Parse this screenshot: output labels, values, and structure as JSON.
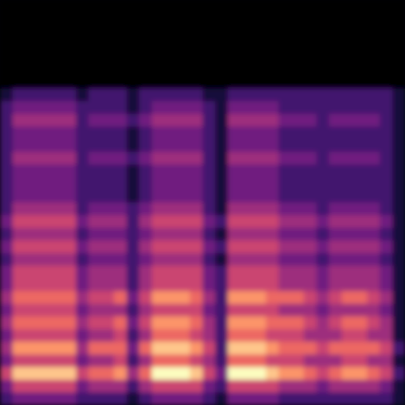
{
  "chart_data": {
    "type": "heatmap",
    "color": "magma",
    "tick_labels": false,
    "zlim": [
      0,
      9
    ],
    "cells": [
      [
        0,
        0,
        0,
        0,
        0,
        0,
        0,
        0,
        0,
        0,
        0,
        0,
        0,
        0,
        0,
        0,
        0,
        0,
        0,
        0,
        0,
        0,
        0,
        0,
        0,
        0,
        0,
        0,
        0,
        0,
        0,
        0
      ],
      [
        0,
        0,
        0,
        0,
        0,
        0,
        0,
        0,
        0,
        0,
        0,
        0,
        0,
        0,
        0,
        0,
        0,
        0,
        0,
        0,
        0,
        0,
        0,
        0,
        0,
        0,
        0,
        0,
        0,
        0,
        0,
        0
      ],
      [
        0,
        0,
        0,
        0,
        0,
        0,
        0,
        0,
        0,
        0,
        0,
        0,
        0,
        0,
        0,
        0,
        0,
        0,
        0,
        0,
        0,
        0,
        0,
        0,
        0,
        0,
        0,
        0,
        0,
        0,
        0,
        0
      ],
      [
        0,
        0,
        0,
        0,
        0,
        0,
        0,
        0,
        0,
        0,
        0,
        0,
        0,
        0,
        0,
        0,
        0,
        0,
        0,
        0,
        0,
        0,
        0,
        0,
        0,
        0,
        0,
        0,
        0,
        0,
        0,
        0
      ],
      [
        0,
        0,
        0,
        0,
        0,
        0,
        0,
        0,
        0,
        0,
        0,
        0,
        0,
        0,
        0,
        0,
        0,
        0,
        0,
        0,
        0,
        0,
        0,
        0,
        0,
        0,
        0,
        0,
        0,
        0,
        0,
        0
      ],
      [
        0,
        0,
        0,
        0,
        0,
        0,
        0,
        0,
        0,
        0,
        0,
        0,
        0,
        0,
        0,
        0,
        0,
        0,
        0,
        0,
        0,
        0,
        0,
        0,
        0,
        0,
        0,
        0,
        0,
        0,
        0,
        0
      ],
      [
        0,
        0,
        0,
        0,
        0,
        0,
        0,
        0,
        0,
        0,
        0,
        0,
        0,
        0,
        0,
        0,
        0,
        0,
        0,
        0,
        0,
        0,
        0,
        0,
        0,
        0,
        0,
        0,
        0,
        0,
        0,
        0
      ],
      [
        1,
        2,
        2,
        2,
        2,
        2,
        1,
        2,
        2,
        2,
        1,
        2,
        2,
        2,
        2,
        2,
        1,
        1,
        2,
        2,
        2,
        2,
        2,
        2,
        2,
        2,
        2,
        2,
        2,
        2,
        2,
        1
      ],
      [
        2,
        3,
        3,
        3,
        3,
        3,
        2,
        2,
        2,
        2,
        1,
        2,
        3,
        3,
        3,
        3,
        2,
        1,
        3,
        3,
        3,
        3,
        2,
        2,
        2,
        2,
        2,
        2,
        2,
        2,
        2,
        1
      ],
      [
        2,
        4,
        4,
        4,
        4,
        4,
        2,
        3,
        3,
        3,
        2,
        3,
        4,
        4,
        4,
        4,
        2,
        1,
        4,
        4,
        4,
        4,
        3,
        3,
        3,
        2,
        3,
        3,
        3,
        3,
        2,
        1
      ],
      [
        2,
        3,
        3,
        3,
        3,
        3,
        2,
        2,
        2,
        2,
        1,
        2,
        3,
        3,
        3,
        3,
        2,
        1,
        3,
        3,
        3,
        3,
        2,
        2,
        2,
        2,
        2,
        2,
        2,
        2,
        2,
        1
      ],
      [
        2,
        3,
        3,
        3,
        3,
        3,
        2,
        2,
        2,
        2,
        1,
        2,
        3,
        3,
        3,
        3,
        2,
        1,
        3,
        3,
        3,
        3,
        2,
        2,
        2,
        2,
        2,
        2,
        2,
        2,
        2,
        1
      ],
      [
        2,
        4,
        4,
        4,
        4,
        4,
        2,
        3,
        3,
        3,
        2,
        3,
        4,
        4,
        4,
        4,
        2,
        1,
        4,
        4,
        4,
        4,
        3,
        3,
        3,
        2,
        3,
        3,
        3,
        3,
        2,
        1
      ],
      [
        2,
        3,
        3,
        3,
        3,
        3,
        2,
        2,
        2,
        2,
        1,
        2,
        3,
        3,
        3,
        3,
        2,
        1,
        3,
        3,
        3,
        3,
        2,
        2,
        2,
        2,
        2,
        2,
        2,
        2,
        2,
        1
      ],
      [
        2,
        3,
        3,
        3,
        3,
        3,
        2,
        2,
        2,
        2,
        1,
        2,
        3,
        3,
        3,
        3,
        2,
        1,
        3,
        3,
        3,
        3,
        2,
        2,
        2,
        2,
        2,
        2,
        2,
        2,
        2,
        1
      ],
      [
        2,
        3,
        3,
        3,
        3,
        3,
        2,
        2,
        2,
        2,
        1,
        2,
        3,
        3,
        3,
        3,
        2,
        1,
        3,
        3,
        3,
        3,
        2,
        2,
        2,
        2,
        2,
        2,
        2,
        2,
        2,
        1
      ],
      [
        2,
        4,
        4,
        4,
        4,
        4,
        2,
        3,
        3,
        3,
        2,
        3,
        4,
        4,
        4,
        4,
        2,
        1,
        4,
        4,
        4,
        4,
        3,
        3,
        3,
        2,
        3,
        3,
        3,
        3,
        2,
        1
      ],
      [
        3,
        5,
        5,
        5,
        5,
        5,
        3,
        4,
        4,
        4,
        2,
        4,
        5,
        5,
        5,
        5,
        3,
        2,
        5,
        5,
        5,
        5,
        4,
        4,
        4,
        3,
        4,
        4,
        4,
        4,
        3,
        1
      ],
      [
        2,
        4,
        4,
        4,
        4,
        4,
        2,
        3,
        3,
        3,
        2,
        3,
        4,
        4,
        4,
        4,
        2,
        1,
        4,
        4,
        4,
        4,
        3,
        3,
        3,
        2,
        3,
        3,
        3,
        3,
        2,
        1
      ],
      [
        3,
        5,
        5,
        5,
        5,
        5,
        3,
        4,
        4,
        4,
        2,
        4,
        5,
        5,
        5,
        5,
        3,
        2,
        5,
        5,
        5,
        5,
        4,
        4,
        4,
        3,
        4,
        4,
        4,
        4,
        3,
        1
      ],
      [
        2,
        4,
        4,
        4,
        4,
        4,
        2,
        3,
        3,
        3,
        2,
        3,
        4,
        4,
        4,
        4,
        2,
        1,
        4,
        4,
        4,
        4,
        3,
        3,
        3,
        2,
        3,
        3,
        3,
        3,
        2,
        1
      ],
      [
        3,
        5,
        5,
        5,
        5,
        5,
        3,
        4,
        4,
        4,
        2,
        4,
        5,
        5,
        5,
        5,
        3,
        2,
        5,
        5,
        5,
        5,
        4,
        4,
        4,
        3,
        4,
        4,
        4,
        4,
        3,
        1
      ],
      [
        3,
        5,
        5,
        5,
        5,
        5,
        3,
        4,
        4,
        4,
        2,
        4,
        5,
        5,
        5,
        5,
        3,
        2,
        5,
        5,
        5,
        5,
        4,
        4,
        4,
        3,
        4,
        4,
        4,
        4,
        3,
        1
      ],
      [
        4,
        6,
        6,
        6,
        6,
        6,
        4,
        5,
        5,
        6,
        3,
        5,
        7,
        7,
        7,
        6,
        4,
        2,
        7,
        7,
        7,
        6,
        6,
        6,
        5,
        4,
        5,
        6,
        6,
        5,
        4,
        1
      ],
      [
        3,
        5,
        5,
        5,
        5,
        5,
        3,
        4,
        4,
        4,
        2,
        4,
        5,
        5,
        5,
        5,
        3,
        2,
        5,
        5,
        5,
        5,
        4,
        4,
        4,
        3,
        4,
        4,
        4,
        4,
        3,
        1
      ],
      [
        4,
        6,
        6,
        6,
        6,
        6,
        4,
        5,
        5,
        6,
        3,
        5,
        7,
        7,
        7,
        6,
        4,
        2,
        7,
        7,
        7,
        6,
        6,
        6,
        5,
        4,
        5,
        6,
        6,
        5,
        4,
        1
      ],
      [
        3,
        5,
        5,
        5,
        5,
        5,
        3,
        4,
        4,
        5,
        2,
        4,
        6,
        6,
        6,
        5,
        4,
        2,
        6,
        6,
        6,
        5,
        5,
        5,
        4,
        4,
        4,
        5,
        5,
        4,
        4,
        1
      ],
      [
        4,
        7,
        7,
        7,
        7,
        7,
        4,
        6,
        6,
        6,
        3,
        6,
        8,
        8,
        8,
        7,
        5,
        2,
        8,
        8,
        8,
        7,
        6,
        6,
        6,
        5,
        6,
        6,
        6,
        6,
        5,
        2
      ],
      [
        3,
        5,
        5,
        5,
        5,
        5,
        3,
        4,
        4,
        5,
        2,
        4,
        6,
        6,
        6,
        5,
        4,
        2,
        6,
        6,
        6,
        5,
        5,
        5,
        4,
        4,
        4,
        5,
        5,
        4,
        4,
        1
      ],
      [
        5,
        8,
        8,
        8,
        8,
        8,
        5,
        6,
        6,
        7,
        4,
        6,
        9,
        9,
        9,
        8,
        5,
        3,
        9,
        9,
        9,
        8,
        7,
        7,
        6,
        5,
        6,
        7,
        7,
        6,
        5,
        2
      ],
      [
        3,
        5,
        5,
        5,
        5,
        5,
        3,
        4,
        4,
        4,
        2,
        4,
        5,
        5,
        5,
        5,
        3,
        2,
        5,
        5,
        5,
        5,
        4,
        4,
        4,
        3,
        4,
        4,
        4,
        4,
        3,
        1
      ],
      [
        2,
        3,
        3,
        3,
        3,
        3,
        2,
        2,
        2,
        2,
        1,
        2,
        3,
        3,
        3,
        3,
        2,
        1,
        3,
        3,
        3,
        3,
        2,
        2,
        2,
        2,
        2,
        2,
        2,
        2,
        2,
        1
      ]
    ]
  }
}
